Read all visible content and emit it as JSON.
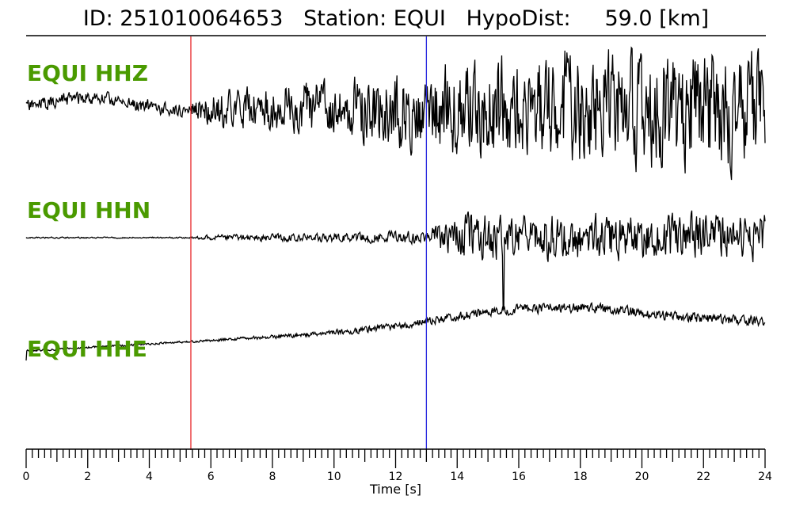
{
  "header": {
    "title": "ID: 251010064653   Station: EQUI   HypoDist:     59.0 [km]"
  },
  "chart_data": {
    "type": "line",
    "xlabel": "Time [s]",
    "xlim": [
      0,
      24
    ],
    "x_ticks": [
      "0",
      "2",
      "4",
      "6",
      "8",
      "10",
      "12",
      "14",
      "16",
      "18",
      "20",
      "22",
      "24"
    ],
    "grid": false,
    "markers": [
      {
        "name": "P pick",
        "time": 5.35,
        "color": "#e8282b"
      },
      {
        "name": "S pick",
        "time": 13.0,
        "color": "#2a2ae0"
      }
    ],
    "series": [
      {
        "name": "EQUI HHZ",
        "color": "#000000",
        "envelope": [
          [
            0,
            1.0
          ],
          [
            5.3,
            0.9
          ],
          [
            6,
            2.5
          ],
          [
            10,
            4.0
          ],
          [
            13,
            6.0
          ],
          [
            16,
            8.0
          ],
          [
            24,
            8.5
          ]
        ]
      },
      {
        "name": "EQUI HHN",
        "color": "#000000",
        "envelope": [
          [
            0,
            0.15
          ],
          [
            5.3,
            0.15
          ],
          [
            6,
            0.6
          ],
          [
            10,
            1.0
          ],
          [
            13,
            1.5
          ],
          [
            14,
            5.0
          ],
          [
            24,
            5.0
          ]
        ]
      },
      {
        "name": "EQUI HHE",
        "color": "#000000",
        "envelope": [
          [
            0,
            0.2
          ],
          [
            5.3,
            0.2
          ],
          [
            8,
            0.4
          ],
          [
            13,
            0.8
          ],
          [
            16,
            1.0
          ],
          [
            24,
            1.0
          ]
        ]
      }
    ]
  }
}
